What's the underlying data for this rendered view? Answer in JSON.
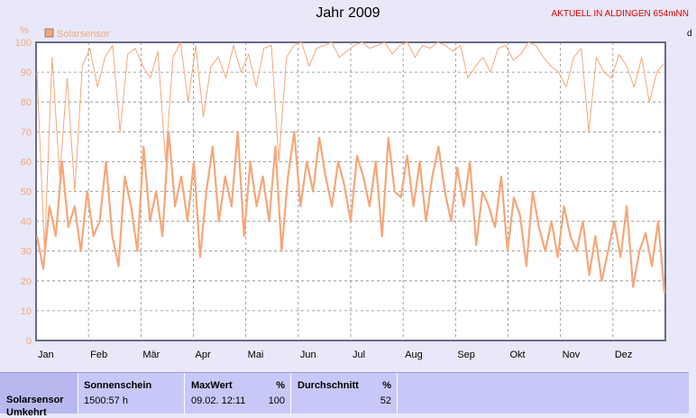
{
  "header": {
    "title": "Jahr 2009",
    "location": "AKTUELL IN ALDINGEN 654mNN",
    "right_edge_text": "d"
  },
  "chart_data": {
    "type": "line",
    "title": "Jahr 2009",
    "ylabel": "%",
    "xlabel": "",
    "ylim": [
      0,
      100
    ],
    "yticks": [
      0,
      10,
      20,
      30,
      40,
      50,
      60,
      70,
      80,
      90,
      100
    ],
    "xticks": [
      "Jan",
      "Feb",
      "Mär",
      "Apr",
      "Mai",
      "Jun",
      "Jul",
      "Aug",
      "Sep",
      "Okt",
      "Nov",
      "Dez"
    ],
    "grid": true,
    "legend": [
      "Solarsensor"
    ],
    "color": "#f5a77a",
    "series": [
      {
        "name": "Solarsensor",
        "style": "thin",
        "values": [
          90,
          30,
          95,
          55,
          88,
          50,
          92,
          98,
          85,
          95,
          99,
          70,
          96,
          98,
          92,
          88,
          97,
          60,
          95,
          100,
          80,
          99,
          75,
          92,
          95,
          88,
          99,
          90,
          96,
          85,
          98,
          99,
          60,
          95,
          99,
          100,
          92,
          98,
          99,
          100,
          95,
          97,
          99,
          100,
          98,
          99,
          100,
          96,
          99,
          100,
          95,
          99,
          98,
          100,
          99,
          97,
          99,
          88,
          92,
          95,
          90,
          98,
          99,
          94,
          96,
          100,
          99,
          95,
          92,
          90,
          85,
          95,
          98,
          70,
          95,
          90,
          88,
          96,
          92,
          85,
          95,
          80,
          90,
          93
        ]
      },
      {
        "name": "Solarsensor",
        "style": "thick",
        "values": [
          35,
          24,
          45,
          35,
          60,
          38,
          45,
          30,
          50,
          35,
          40,
          60,
          35,
          25,
          55,
          45,
          30,
          65,
          40,
          50,
          35,
          70,
          45,
          55,
          40,
          60,
          28,
          50,
          65,
          40,
          55,
          45,
          70,
          35,
          60,
          45,
          55,
          40,
          65,
          30,
          55,
          70,
          45,
          60,
          50,
          68,
          55,
          45,
          60,
          52,
          40,
          62,
          55,
          45,
          60,
          35,
          68,
          50,
          48,
          62,
          45,
          60,
          40,
          55,
          65,
          50,
          40,
          58,
          45,
          60,
          32,
          50,
          45,
          38,
          55,
          30,
          48,
          42,
          25,
          50,
          38,
          30,
          40,
          28,
          45,
          35,
          30,
          40,
          22,
          35,
          20,
          30,
          40,
          28,
          45,
          18,
          30,
          36,
          25,
          40,
          16
        ]
      }
    ]
  },
  "info": {
    "row_label_1": "Solarsensor",
    "row_label_2": "Umkehrt",
    "sunshine_header": "Sonnenschein",
    "sunshine_value": "1500:57 h",
    "max_header": "MaxWert",
    "max_unit": "%",
    "max_date": "09.02.  12:11",
    "max_value": "100",
    "avg_header": "Durchschnitt",
    "avg_unit": "%",
    "avg_value": "52"
  }
}
